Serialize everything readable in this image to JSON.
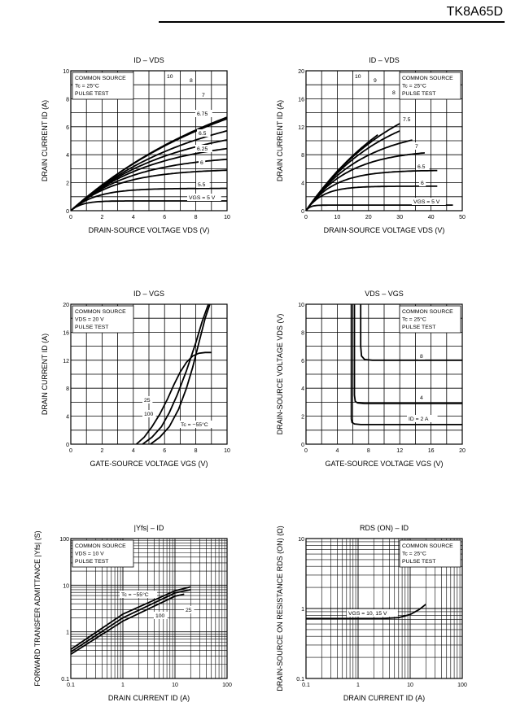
{
  "header": {
    "part_number": "TK8A65D"
  },
  "chart_data": [
    {
      "type": "line",
      "title": "ID – VDS",
      "xlabel": "DRAIN-SOURCE VOLTAGE  VDS   (V)",
      "ylabel": "DRAIN CURRENT   ID   (A)",
      "xlim": [
        0,
        10
      ],
      "ylim": [
        0,
        10
      ],
      "xticks": [
        "0",
        "2",
        "4",
        "6",
        "8",
        "10"
      ],
      "yticks": [
        "0",
        "2",
        "4",
        "6",
        "8",
        "10"
      ],
      "conditions": [
        "COMMON SOURCE",
        "Tc = 25°C",
        "PULSE TEST"
      ],
      "grid": true,
      "series": [
        {
          "name": "10",
          "sat": 11.5
        },
        {
          "name": "8",
          "sat": 11.0
        },
        {
          "name": "7",
          "sat": 8.0
        },
        {
          "name": "6.75",
          "sat": 6.4
        },
        {
          "name": "6.5",
          "sat": 5.2
        },
        {
          "name": "6.25",
          "sat": 4.0
        },
        {
          "name": "6",
          "sat": 3.0
        },
        {
          "name": "5.5",
          "sat": 1.6
        },
        {
          "name": "VGS = 5 V",
          "sat": 0.7
        }
      ]
    },
    {
      "type": "line",
      "title": "ID – VDS",
      "xlabel": "DRAIN-SOURCE VOLTAGE  VDS   (V)",
      "ylabel": "DRAIN CURRENT   ID   (A)",
      "xlim": [
        0,
        50
      ],
      "ylim": [
        0,
        20
      ],
      "xticks": [
        "0",
        "10",
        "20",
        "30",
        "40",
        "50"
      ],
      "yticks": [
        "0",
        "4",
        "8",
        "12",
        "16",
        "20"
      ],
      "conditions": [
        "COMMON SOURCE",
        "Tc = 25°C",
        "PULSE TEST"
      ],
      "grid": true,
      "series": [
        {
          "name": "10",
          "sat": 22,
          "end": 23
        },
        {
          "name": "9",
          "sat": 20,
          "end": 30
        },
        {
          "name": "8",
          "sat": 16.4,
          "end": 30
        },
        {
          "name": "7.5",
          "sat": 12.0,
          "end": 34
        },
        {
          "name": "7",
          "sat": 8.8,
          "end": 38
        },
        {
          "name": "6.5",
          "sat": 5.8,
          "end": 42
        },
        {
          "name": "6",
          "sat": 3.5,
          "end": 42
        },
        {
          "name": "VGS = 5 V",
          "sat": 0.8,
          "end": 47
        }
      ]
    },
    {
      "type": "line",
      "title": "ID – VGS",
      "xlabel": "GATE-SOURCE VOLTAGE  VGS   (V)",
      "ylabel": "DRAIN CURRENT   ID   (A)",
      "xlim": [
        0,
        10
      ],
      "ylim": [
        0,
        20
      ],
      "xticks": [
        "0",
        "2",
        "4",
        "6",
        "8",
        "10"
      ],
      "yticks": [
        "0",
        "4",
        "8",
        "12",
        "16",
        "20"
      ],
      "conditions": [
        "COMMON SOURCE",
        "VDS = 20 V",
        "PULSE TEST"
      ],
      "grid": true,
      "series": [
        {
          "name": "25",
          "x": [
            4.6,
            5.2,
            5.8,
            6.3,
            6.8,
            7.4,
            8.0,
            8.4,
            8.8
          ],
          "y": [
            0,
            1.0,
            2.5,
            4.5,
            7.0,
            10.5,
            14.5,
            17.5,
            20
          ]
        },
        {
          "name": "100",
          "x": [
            4.2,
            4.7,
            5.2,
            5.7,
            6.2,
            6.6,
            7.0,
            7.4,
            7.8,
            8.2,
            8.6,
            9.0
          ],
          "y": [
            0,
            1.0,
            2.5,
            4.3,
            6.5,
            8.5,
            10.3,
            11.7,
            12.6,
            13.0,
            13.1,
            13.1
          ]
        },
        {
          "name": "Tc = −55°C",
          "x": [
            5.1,
            5.7,
            6.3,
            6.9,
            7.4,
            7.8,
            8.2,
            8.6,
            8.9
          ],
          "y": [
            0,
            1.0,
            2.5,
            5.0,
            8.0,
            11.0,
            14.5,
            18.0,
            20
          ]
        }
      ]
    },
    {
      "type": "line",
      "title": "VDS – VGS",
      "xlabel": "GATE-SOURCE VOLTAGE  VGS   (V)",
      "ylabel": "DRAIN-SOURCE VOLTAGE  VDS   (V)",
      "xlim": [
        0,
        20
      ],
      "ylim": [
        0,
        10
      ],
      "xticks": [
        "0",
        "4",
        "8",
        "12",
        "16",
        "20"
      ],
      "yticks": [
        "0",
        "2",
        "4",
        "6",
        "8",
        "10"
      ],
      "conditions": [
        "COMMON SOURCE",
        "Tc = 25°C",
        "PULSE TEST"
      ],
      "grid": true,
      "series": [
        {
          "name": "8",
          "x": [
            7.0,
            7.0,
            7.1,
            7.5,
            8.5,
            20
          ],
          "y": [
            10,
            7.0,
            6.3,
            6.05,
            6.0,
            6.0
          ]
        },
        {
          "name": "4",
          "x": [
            6.2,
            6.2,
            6.3,
            6.6,
            7.5,
            20
          ],
          "y": [
            10,
            3.5,
            3.05,
            2.95,
            2.9,
            2.9
          ]
        },
        {
          "name": "ID = 2 A",
          "x": [
            5.8,
            5.8,
            5.9,
            6.2,
            7.0,
            20
          ],
          "y": [
            10,
            1.8,
            1.55,
            1.45,
            1.4,
            1.4
          ]
        }
      ]
    },
    {
      "type": "line",
      "title": "|Yfs| – ID",
      "xlabel": "DRAIN CURRENT   ID   (A)",
      "ylabel": "FORWARD TRANSFER ADMITTANCE  |Yfs|  (S)",
      "xscale": "log",
      "yscale": "log",
      "xlim": [
        0.1,
        100
      ],
      "ylim": [
        0.1,
        100
      ],
      "xticks": [
        "0.1",
        "1",
        "10",
        "100"
      ],
      "yticks": [
        "0.1",
        "1",
        "10",
        "100"
      ],
      "conditions": [
        "COMMON SOURCE",
        "VDS = 10 V",
        "PULSE TEST"
      ],
      "grid": true,
      "series": [
        {
          "name": "Tc = −55°C",
          "x": [
            0.1,
            1,
            10,
            20
          ],
          "y": [
            0.42,
            2.4,
            7.6,
            9.2
          ]
        },
        {
          "name": "25",
          "x": [
            0.1,
            1,
            10,
            20
          ],
          "y": [
            0.37,
            2.0,
            6.8,
            8.0
          ]
        },
        {
          "name": "100",
          "x": [
            0.1,
            1,
            10,
            15
          ],
          "y": [
            0.33,
            1.7,
            5.8,
            6.4
          ]
        }
      ]
    },
    {
      "type": "line",
      "title": "RDS (ON) – ID",
      "xlabel": "DRAIN CURRENT   ID   (A)",
      "ylabel": "DRAIN-SOURCE ON RESISTANCE  RDS (ON)  (Ω)",
      "xscale": "log",
      "yscale": "log",
      "xlim": [
        0.1,
        100
      ],
      "ylim": [
        0.1,
        10
      ],
      "xticks": [
        "0.1",
        "1",
        "10",
        "100"
      ],
      "yticks": [
        "0.1",
        "1",
        "10"
      ],
      "conditions": [
        "COMMON SOURCE",
        "Tc = 25°C",
        "PULSE TEST"
      ],
      "grid": true,
      "series": [
        {
          "name": "VGS = 10, 15 V",
          "x": [
            0.1,
            1,
            3,
            6,
            10,
            15,
            20
          ],
          "y": [
            0.72,
            0.72,
            0.72,
            0.74,
            0.82,
            0.97,
            1.15
          ]
        }
      ]
    }
  ]
}
